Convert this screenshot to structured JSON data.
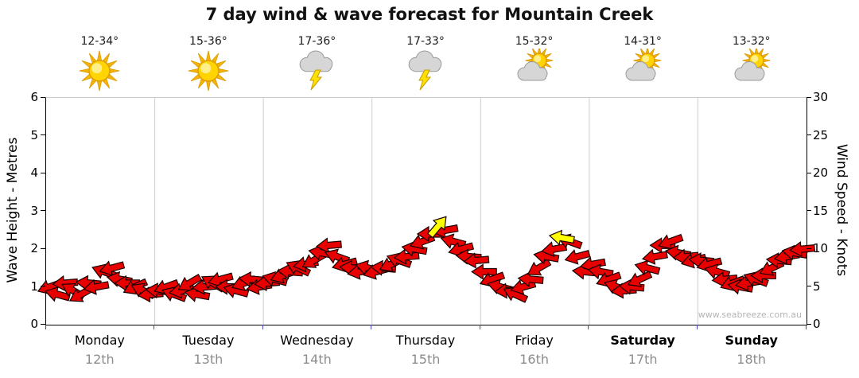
{
  "title": "7 day wind & wave forecast for Mountain Creek",
  "watermark": "www.seabreeze.com.au",
  "left_axis": {
    "label": "Wave Height - Metres",
    "min": 0,
    "max": 6,
    "ticks": [
      0,
      1,
      2,
      3,
      4,
      5,
      6
    ]
  },
  "right_axis": {
    "label": "Wind Speed - Knots",
    "min": 0,
    "max": 30,
    "ticks": [
      0,
      5,
      10,
      15,
      20,
      25,
      30
    ]
  },
  "days": [
    {
      "name": "Monday",
      "date": "12th",
      "temps": "12-34°",
      "icon": "sunny-icon",
      "bold": false
    },
    {
      "name": "Tuesday",
      "date": "13th",
      "temps": "15-36°",
      "icon": "sunny-icon",
      "bold": false
    },
    {
      "name": "Wednesday",
      "date": "14th",
      "temps": "17-36°",
      "icon": "storm-icon",
      "bold": false
    },
    {
      "name": "Thursday",
      "date": "15th",
      "temps": "17-33°",
      "icon": "storm-icon",
      "bold": false
    },
    {
      "name": "Friday",
      "date": "16th",
      "temps": "15-32°",
      "icon": "partly-cloudy-icon",
      "bold": false
    },
    {
      "name": "Saturday",
      "date": "17th",
      "temps": "14-31°",
      "icon": "partly-cloudy-icon",
      "bold": true
    },
    {
      "name": "Sunday",
      "date": "18th",
      "temps": "13-32°",
      "icon": "partly-cloudy-icon",
      "bold": true
    }
  ],
  "chart_data": {
    "type": "scatter",
    "description": "Wind arrows: x in days (0 = start of Monday, 7 = end of Sunday); y = wind speed in knots (right axis); wave height metres (left axis) = knots / 5. dir = arrow rotation degrees (0 = pointing right). hl = 1 marks yellow highlighted arrows.",
    "x_range": [
      0,
      7
    ],
    "arrow_color": "#e80000",
    "highlight_color": "#ffff00",
    "grid_color": "#cccccc",
    "points": [
      [
        0.036,
        5,
        160,
        0
      ],
      [
        0.107,
        4,
        195,
        0
      ],
      [
        0.179,
        5.5,
        175,
        0
      ],
      [
        0.25,
        4.5,
        210,
        0
      ],
      [
        0.321,
        4,
        150,
        0
      ],
      [
        0.393,
        5.5,
        185,
        0
      ],
      [
        0.464,
        5,
        170,
        0
      ],
      [
        0.536,
        7,
        200,
        0
      ],
      [
        0.607,
        7.5,
        165,
        0
      ],
      [
        0.679,
        6,
        190,
        0
      ],
      [
        0.75,
        5.5,
        180,
        0
      ],
      [
        0.821,
        5,
        155,
        0
      ],
      [
        0.893,
        4.5,
        205,
        0
      ],
      [
        0.964,
        4,
        175,
        0
      ],
      [
        1.036,
        4.5,
        185,
        0
      ],
      [
        1.107,
        5,
        160,
        0
      ],
      [
        1.179,
        4,
        200,
        0
      ],
      [
        1.25,
        4.5,
        170,
        0
      ],
      [
        1.321,
        5.5,
        150,
        0
      ],
      [
        1.393,
        4,
        190,
        0
      ],
      [
        1.464,
        5,
        175,
        0
      ],
      [
        1.536,
        5.5,
        210,
        0
      ],
      [
        1.607,
        6,
        165,
        0
      ],
      [
        1.679,
        5,
        180,
        0
      ],
      [
        1.75,
        4.5,
        195,
        0
      ],
      [
        1.821,
        5.5,
        160,
        0
      ],
      [
        1.893,
        6,
        185,
        0
      ],
      [
        1.964,
        5,
        170,
        0
      ],
      [
        2.036,
        5.5,
        175,
        0
      ],
      [
        2.107,
        6,
        195,
        0
      ],
      [
        2.179,
        6.5,
        160,
        0
      ],
      [
        2.25,
        7,
        185,
        0
      ],
      [
        2.321,
        7.5,
        205,
        0
      ],
      [
        2.393,
        8,
        170,
        0
      ],
      [
        2.464,
        8.5,
        150,
        0
      ],
      [
        2.536,
        9.5,
        190,
        0
      ],
      [
        2.607,
        10.5,
        175,
        0
      ],
      [
        2.679,
        9,
        200,
        0
      ],
      [
        2.75,
        8,
        165,
        0
      ],
      [
        2.821,
        7.5,
        185,
        0
      ],
      [
        2.893,
        7,
        170,
        0
      ],
      [
        2.964,
        7.5,
        195,
        0
      ],
      [
        3.036,
        7,
        165,
        0
      ],
      [
        3.107,
        7.5,
        185,
        0
      ],
      [
        3.179,
        8,
        155,
        0
      ],
      [
        3.25,
        8.5,
        200,
        0
      ],
      [
        3.321,
        9,
        175,
        0
      ],
      [
        3.393,
        10,
        190,
        0
      ],
      [
        3.464,
        11,
        160,
        0
      ],
      [
        3.536,
        12,
        180,
        0
      ],
      [
        3.607,
        13,
        310,
        1
      ],
      [
        3.679,
        12.5,
        170,
        0
      ],
      [
        3.75,
        11,
        195,
        0
      ],
      [
        3.821,
        10,
        165,
        0
      ],
      [
        3.893,
        9,
        185,
        0
      ],
      [
        3.964,
        8.5,
        175,
        0
      ],
      [
        4.036,
        7,
        180,
        0
      ],
      [
        4.107,
        6,
        160,
        0
      ],
      [
        4.179,
        5,
        195,
        0
      ],
      [
        4.25,
        4.5,
        175,
        0
      ],
      [
        4.321,
        4,
        205,
        0
      ],
      [
        4.393,
        5,
        165,
        0
      ],
      [
        4.464,
        6,
        185,
        0
      ],
      [
        4.536,
        7.5,
        150,
        0
      ],
      [
        4.607,
        9,
        190,
        0
      ],
      [
        4.679,
        10,
        170,
        0
      ],
      [
        4.75,
        11.5,
        190,
        1
      ],
      [
        4.821,
        11,
        200,
        0
      ],
      [
        4.893,
        9,
        165,
        0
      ],
      [
        4.964,
        7,
        185,
        0
      ],
      [
        5.036,
        8,
        170,
        0
      ],
      [
        5.107,
        7,
        190,
        0
      ],
      [
        5.179,
        6,
        160,
        0
      ],
      [
        5.25,
        5,
        200,
        0
      ],
      [
        5.321,
        4.5,
        175,
        0
      ],
      [
        5.393,
        5,
        185,
        0
      ],
      [
        5.464,
        6,
        155,
        0
      ],
      [
        5.536,
        7.5,
        195,
        0
      ],
      [
        5.607,
        9,
        170,
        0
      ],
      [
        5.679,
        10.5,
        180,
        0
      ],
      [
        5.75,
        11,
        160,
        0
      ],
      [
        5.821,
        9.5,
        190,
        0
      ],
      [
        5.893,
        9,
        175,
        0
      ],
      [
        5.964,
        8.5,
        165,
        0
      ],
      [
        6.036,
        8.5,
        185,
        0
      ],
      [
        6.107,
        8,
        165,
        0
      ],
      [
        6.179,
        7,
        195,
        0
      ],
      [
        6.25,
        6,
        175,
        0
      ],
      [
        6.321,
        5.5,
        160,
        0
      ],
      [
        6.393,
        5,
        190,
        0
      ],
      [
        6.464,
        5.5,
        170,
        0
      ],
      [
        6.536,
        6,
        200,
        0
      ],
      [
        6.607,
        6.5,
        180,
        0
      ],
      [
        6.679,
        7.5,
        155,
        0
      ],
      [
        6.75,
        8.5,
        185,
        0
      ],
      [
        6.821,
        9,
        170,
        0
      ],
      [
        6.893,
        9.5,
        190,
        0
      ],
      [
        6.964,
        10,
        175,
        0
      ]
    ]
  }
}
